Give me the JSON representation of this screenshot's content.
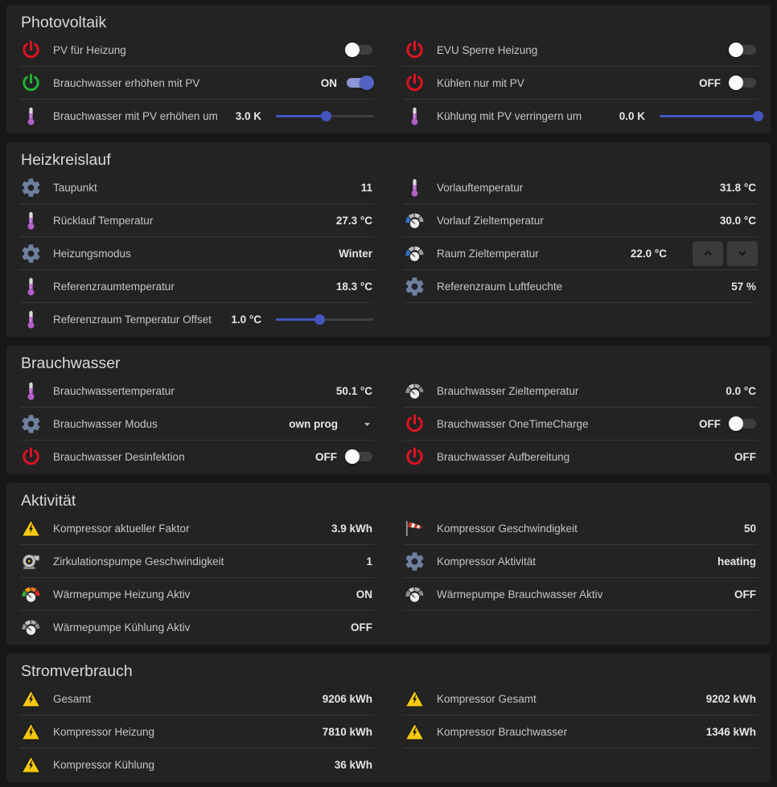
{
  "colors": {
    "page_bg": "#171717",
    "card_bg": "#232323",
    "divider": "#363636",
    "title_text": "#dadada",
    "label_text": "#c6c6c6",
    "value_text": "#e6e6e6",
    "toggle_on_knob": "#5263c5",
    "toggle_on_track": "#8d96d6",
    "toggle_off_knob": "#fafafa",
    "slider_blue": "#4456bd",
    "power_red": "#e01222",
    "power_green": "#21b135",
    "thermometer_purple": "#b45fc8",
    "gear_gray_blue": "#6f809f",
    "warning_yellow": "#f6c90e",
    "gauge_green": "#34a83c",
    "gauge_yellow": "#f0a30a",
    "gauge_orange": "#f07324",
    "gauge_red": "#e02d1f",
    "gauge_blue": "#3173d1"
  },
  "cards": [
    {
      "title": "Photovoltaik",
      "columns": [
        [
          {
            "icon": "power-icon",
            "icon_variant": "red",
            "label": "PV für Heizung",
            "control": {
              "type": "toggle",
              "on": false
            }
          },
          {
            "icon": "power-icon",
            "icon_variant": "green",
            "label": "Brauchwasser erhöhen mit PV",
            "control": {
              "type": "toggle",
              "on": true,
              "state_label": "ON"
            }
          },
          {
            "icon": "thermometer-icon",
            "label": "Brauchwasser mit PV erhöhen um",
            "value": "3.0 K",
            "control": {
              "type": "slider",
              "percent": 51
            }
          }
        ],
        [
          {
            "icon": "power-icon",
            "icon_variant": "red",
            "label": "EVU Sperre Heizung",
            "control": {
              "type": "toggle",
              "on": false
            }
          },
          {
            "icon": "power-icon",
            "icon_variant": "red",
            "label": "Kühlen nur mit PV",
            "control": {
              "type": "toggle",
              "on": false,
              "state_label": "OFF"
            }
          },
          {
            "icon": "thermometer-icon",
            "label": "Kühlung mit PV verringern um",
            "value": "0.0 K",
            "control": {
              "type": "slider",
              "percent": 100
            }
          }
        ]
      ]
    },
    {
      "title": "Heizkreislauf",
      "columns": [
        [
          {
            "icon": "gear-icon",
            "label": "Taupunkt",
            "value": "11"
          },
          {
            "icon": "thermometer-icon",
            "label": "Rücklauf Temperatur",
            "value": "27.3 °C"
          },
          {
            "icon": "gear-icon",
            "label": "Heizungsmodus",
            "value": "Winter"
          },
          {
            "icon": "thermometer-icon",
            "label": "Referenzraumtemperatur",
            "value": "18.3 °C"
          },
          {
            "icon": "thermometer-icon",
            "label": "Referenzraum Temperatur Offset",
            "value": "1.0 °C",
            "control": {
              "type": "slider",
              "percent": 45
            }
          }
        ],
        [
          {
            "icon": "thermometer-icon",
            "label": "Vorlauftemperatur",
            "value": "31.8 °C"
          },
          {
            "icon": "gauge-icon",
            "icon_variant": "blue",
            "label": "Vorlauf Zieltemperatur",
            "value": "30.0 °C"
          },
          {
            "icon": "gauge-icon",
            "icon_variant": "blue",
            "label": "Raum Zieltemperatur",
            "value": "22.0 °C",
            "control": {
              "type": "stepper"
            }
          },
          {
            "icon": "gear-icon",
            "label": "Referenzraum Luftfeuchte",
            "value": "57 %"
          }
        ]
      ]
    },
    {
      "title": "Brauchwasser",
      "columns": [
        [
          {
            "icon": "thermometer-icon",
            "label": "Brauchwassertemperatur",
            "value": "50.1 °C"
          },
          {
            "icon": "gear-icon",
            "label": "Brauchwasser Modus",
            "value": "own prog",
            "control": {
              "type": "select"
            }
          },
          {
            "icon": "power-icon",
            "icon_variant": "red",
            "label": "Brauchwasser Desinfektion",
            "control": {
              "type": "toggle",
              "on": false,
              "state_label": "OFF"
            }
          }
        ],
        [
          {
            "icon": "gauge-icon",
            "icon_variant": "gray",
            "label": "Brauchwasser Zieltemperatur",
            "value": "0.0 °C"
          },
          {
            "icon": "power-icon",
            "icon_variant": "red",
            "label": "Brauchwasser OneTimeCharge",
            "control": {
              "type": "toggle",
              "on": false,
              "state_label": "OFF"
            }
          },
          {
            "icon": "power-icon",
            "icon_variant": "red",
            "label": "Brauchwasser Aufbereitung",
            "value": "OFF"
          }
        ]
      ]
    },
    {
      "title": "Aktivität",
      "columns": [
        [
          {
            "icon": "warning-icon",
            "label": "Kompressor aktueller Faktor",
            "value": "3.9 kWh"
          },
          {
            "icon": "pump-icon",
            "label": "Zirkulationspumpe Geschwindigkeit",
            "value": "1"
          },
          {
            "icon": "gauge-icon",
            "icon_variant": "color",
            "label": "Wärmepumpe Heizung Aktiv",
            "value": "ON"
          },
          {
            "icon": "gauge-icon",
            "icon_variant": "gray",
            "label": "Wärmepumpe Kühlung Aktiv",
            "value": "OFF"
          }
        ],
        [
          {
            "icon": "windsock-icon",
            "label": "Kompressor Geschwindigkeit",
            "value": "50"
          },
          {
            "icon": "gear-icon",
            "label": "Kompressor Aktivität",
            "value": "heating"
          },
          {
            "icon": "gauge-icon",
            "icon_variant": "gray",
            "label": "Wärmepumpe Brauchwasser Aktiv",
            "value": "OFF"
          }
        ]
      ]
    },
    {
      "title": "Stromverbrauch",
      "columns": [
        [
          {
            "icon": "warning-icon",
            "label": "Gesamt",
            "value": "9206 kWh"
          },
          {
            "icon": "warning-icon",
            "label": "Kompressor Heizung",
            "value": "7810 kWh"
          },
          {
            "icon": "warning-icon",
            "label": "Kompressor Kühlung",
            "value": "36 kWh"
          }
        ],
        [
          {
            "icon": "warning-icon",
            "label": "Kompressor Gesamt",
            "value": "9202 kWh"
          },
          {
            "icon": "warning-icon",
            "label": "Kompressor Brauchwasser",
            "value": "1346 kWh"
          }
        ]
      ]
    }
  ]
}
